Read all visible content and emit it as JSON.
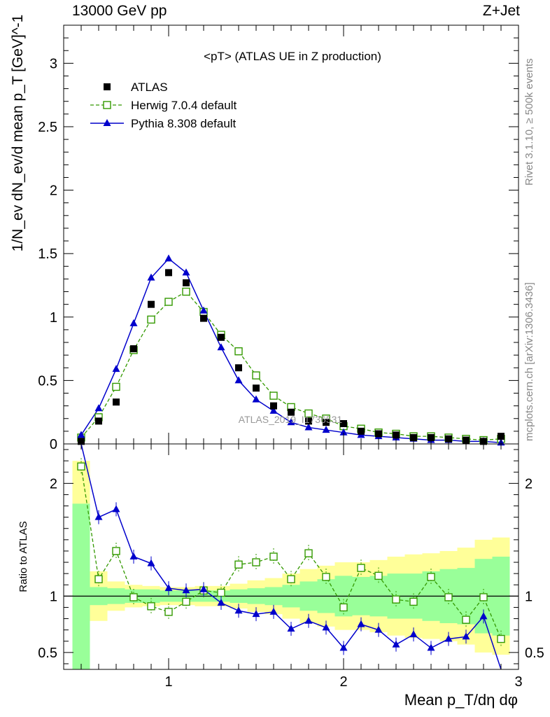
{
  "header": {
    "left": "13000 GeV pp",
    "right": "Z+Jet"
  },
  "side_labels": {
    "rivet": "Rivet 3.1.10, ≥ 500k events",
    "source": "mcplots.cern.ch [arXiv:1306.3436]"
  },
  "watermark": "ATLAS_2019_I1736531",
  "chart_data": [
    {
      "type": "scatter",
      "title": "<pT> (ATLAS UE in Z production)",
      "ylabel": "1/N_ev dN_ev/d mean p_T [GeV]^-1",
      "xlabel": "Mean p_T/dη dφ",
      "xlim": [
        0.4,
        3.0
      ],
      "ylim": [
        0,
        3.3
      ],
      "x_ticks": [
        "1",
        "2",
        "3"
      ],
      "y_ticks": [
        "0",
        "0.5",
        "1",
        "1.5",
        "2",
        "2.5",
        "3"
      ],
      "x": [
        0.5,
        0.6,
        0.7,
        0.8,
        0.9,
        1.0,
        1.1,
        1.2,
        1.3,
        1.4,
        1.5,
        1.6,
        1.7,
        1.8,
        1.9,
        2.0,
        2.1,
        2.2,
        2.3,
        2.4,
        2.5,
        2.6,
        2.7,
        2.8,
        2.9
      ],
      "series": [
        {
          "name": "ATLAS",
          "style": "data",
          "color": "#000000",
          "values": [
            0.02,
            0.18,
            0.33,
            0.75,
            1.1,
            1.35,
            1.27,
            0.99,
            0.84,
            0.6,
            0.44,
            0.3,
            0.25,
            0.18,
            0.17,
            0.16,
            0.1,
            0.08,
            0.07,
            0.05,
            0.05,
            0.04,
            0.03,
            0.02,
            0.06
          ]
        },
        {
          "name": "Herwig 7.0.4 default",
          "style": "open-square-dashed",
          "color": "#339900",
          "values": [
            0.05,
            0.21,
            0.45,
            0.74,
            0.98,
            1.12,
            1.2,
            1.04,
            0.86,
            0.73,
            0.54,
            0.38,
            0.29,
            0.24,
            0.2,
            0.14,
            0.12,
            0.09,
            0.08,
            0.06,
            0.06,
            0.05,
            0.04,
            0.03,
            0.04
          ]
        },
        {
          "name": "Pythia 8.308 default",
          "style": "triangle-solid",
          "color": "#0000cc",
          "values": [
            0.07,
            0.28,
            0.59,
            0.95,
            1.31,
            1.46,
            1.35,
            1.05,
            0.76,
            0.5,
            0.35,
            0.26,
            0.17,
            0.13,
            0.11,
            0.09,
            0.07,
            0.06,
            0.05,
            0.04,
            0.03,
            0.03,
            0.02,
            0.02,
            0.01
          ]
        }
      ],
      "legend": "top-left"
    },
    {
      "type": "line",
      "ylabel": "Ratio to ATLAS",
      "xlim": [
        0.4,
        3.0
      ],
      "ylim": [
        0.35,
        2.35
      ],
      "y_ticks": [
        "0.5",
        "1",
        "2"
      ],
      "x": [
        0.5,
        0.6,
        0.7,
        0.8,
        0.9,
        1.0,
        1.1,
        1.2,
        1.3,
        1.4,
        1.5,
        1.6,
        1.7,
        1.8,
        1.9,
        2.0,
        2.1,
        2.2,
        2.3,
        2.4,
        2.5,
        2.6,
        2.7,
        2.8,
        2.9
      ],
      "bands": {
        "green_half_width": [
          0.82,
          0.08,
          0.07,
          0.06,
          0.06,
          0.05,
          0.05,
          0.05,
          0.05,
          0.06,
          0.07,
          0.08,
          0.1,
          0.13,
          0.15,
          0.18,
          0.17,
          0.18,
          0.2,
          0.2,
          0.22,
          0.24,
          0.25,
          0.33,
          0.35
        ],
        "yellow_half_width": [
          1.2,
          0.22,
          0.13,
          0.1,
          0.09,
          0.08,
          0.08,
          0.09,
          0.09,
          0.11,
          0.14,
          0.16,
          0.2,
          0.24,
          0.27,
          0.3,
          0.3,
          0.32,
          0.35,
          0.37,
          0.38,
          0.4,
          0.43,
          0.5,
          0.52
        ]
      },
      "series": [
        {
          "name": "Herwig 7.0.4 default",
          "color": "#339900",
          "values": [
            2.15,
            1.15,
            1.4,
            0.99,
            0.91,
            0.86,
            0.95,
            1.05,
            1.03,
            1.28,
            1.3,
            1.35,
            1.15,
            1.38,
            1.17,
            0.9,
            1.25,
            1.18,
            0.97,
            0.95,
            1.17,
            0.99,
            0.79,
            0.99,
            0.62
          ]
        },
        {
          "name": "Pythia 8.308 default",
          "color": "#0000cc",
          "values": [
            2.6,
            1.7,
            1.77,
            1.35,
            1.29,
            1.07,
            1.05,
            1.06,
            0.94,
            0.87,
            0.84,
            0.86,
            0.71,
            0.78,
            0.72,
            0.54,
            0.75,
            0.7,
            0.57,
            0.66,
            0.54,
            0.62,
            0.64,
            0.82,
            0.0
          ]
        }
      ]
    }
  ]
}
